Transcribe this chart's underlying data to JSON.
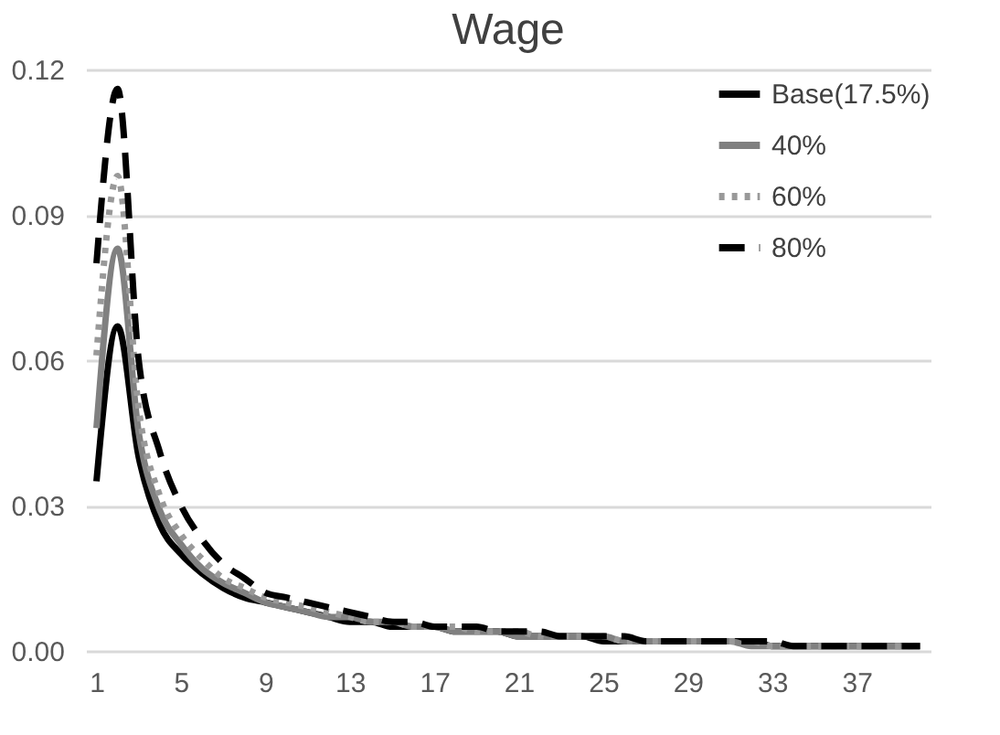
{
  "chart_data": {
    "type": "line",
    "title": "Wage",
    "categories": [
      "1",
      null,
      null,
      null,
      "5",
      null,
      null,
      null,
      "9",
      null,
      null,
      null,
      "13",
      null,
      null,
      null,
      "17",
      null,
      null,
      null,
      "21",
      null,
      null,
      null,
      "25",
      null,
      null,
      null,
      "29",
      null,
      null,
      null,
      "33",
      null,
      null,
      null,
      "37",
      null,
      null,
      null
    ],
    "series": [
      {
        "name": "Base(17.5%)",
        "color": "#000000",
        "line_style": "solid",
        "values": [
          0.035,
          0.067,
          0.04,
          0.026,
          0.02,
          0.016,
          0.013,
          0.011,
          0.01,
          0.009,
          0.008,
          0.007,
          0.006,
          0.006,
          0.005,
          0.005,
          0.005,
          0.004,
          0.004,
          0.004,
          0.003,
          0.003,
          0.003,
          0.003,
          0.002,
          0.002,
          0.002,
          0.002,
          0.002,
          0.002,
          0.002,
          0.002,
          0.001,
          0.001,
          0.001,
          0.001,
          0.001,
          0.001,
          0.001,
          0.001
        ]
      },
      {
        "name": "40%",
        "color": "#808080",
        "line_style": "solid",
        "values": [
          0.046,
          0.083,
          0.045,
          0.029,
          0.022,
          0.017,
          0.014,
          0.012,
          0.01,
          0.009,
          0.008,
          0.007,
          0.007,
          0.006,
          0.006,
          0.005,
          0.005,
          0.004,
          0.004,
          0.004,
          0.003,
          0.003,
          0.003,
          0.003,
          0.003,
          0.002,
          0.002,
          0.002,
          0.002,
          0.002,
          0.002,
          0.001,
          0.001,
          0.001,
          0.001,
          0.001,
          0.001,
          0.001,
          0.001,
          0.001
        ]
      },
      {
        "name": "60%",
        "color": "#999999",
        "line_style": "dotted",
        "values": [
          0.061,
          0.098,
          0.05,
          0.032,
          0.024,
          0.019,
          0.015,
          0.013,
          0.011,
          0.01,
          0.009,
          0.008,
          0.007,
          0.006,
          0.006,
          0.005,
          0.005,
          0.005,
          0.004,
          0.004,
          0.004,
          0.003,
          0.003,
          0.003,
          0.003,
          0.002,
          0.002,
          0.002,
          0.002,
          0.002,
          0.002,
          0.002,
          0.001,
          0.001,
          0.001,
          0.001,
          0.001,
          0.001,
          0.001,
          0.001
        ]
      },
      {
        "name": "80%",
        "color": "#000000",
        "line_style": "dashed",
        "values": [
          0.08,
          0.116,
          0.06,
          0.041,
          0.03,
          0.023,
          0.018,
          0.015,
          0.012,
          0.011,
          0.01,
          0.009,
          0.008,
          0.007,
          0.006,
          0.006,
          0.005,
          0.005,
          0.005,
          0.004,
          0.004,
          0.004,
          0.003,
          0.003,
          0.003,
          0.003,
          0.002,
          0.002,
          0.002,
          0.002,
          0.002,
          0.002,
          0.002,
          0.001,
          0.001,
          0.001,
          0.001,
          0.001,
          0.001,
          0.001
        ]
      }
    ],
    "ylim": [
      0,
      0.12
    ],
    "yticks": [
      {
        "value": 0,
        "label": "0.00"
      },
      0.03,
      0.06,
      0.09,
      0.12
    ],
    "grid": "y",
    "legend": "top right"
  }
}
